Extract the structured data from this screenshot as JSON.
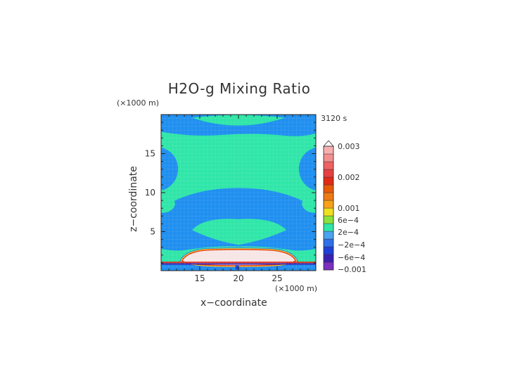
{
  "chart_data": {
    "type": "heatmap",
    "title": "H2O-g Mixing Ratio",
    "time_label": "3120 s",
    "xlabel": "x−coordinate",
    "ylabel": "z−coordinate",
    "x_unit": "(×1000 m)",
    "z_unit": "(×1000 m)",
    "xlim": [
      10,
      30
    ],
    "ylim": [
      0,
      20
    ],
    "x_ticks": [
      "15",
      "20",
      "25"
    ],
    "y_ticks": [
      "5",
      "10",
      "15"
    ],
    "colorbar": {
      "labels": [
        "0.003",
        "0.002",
        "0.001",
        "6e−4",
        "2e−4",
        "−2e−4",
        "−6e−4",
        "−0.001"
      ],
      "colors": [
        "#7b2fbe",
        "#3b1fb0",
        "#1f3fd8",
        "#2f6fe8",
        "#4aa3f0",
        "#2fe6a8",
        "#8ce23a",
        "#f0e020",
        "#f7a21a",
        "#ee7a14",
        "#e85a0a",
        "#e02a18",
        "#e64040",
        "#f06262",
        "#f29090",
        "#f7b0b0"
      ],
      "extend": "max"
    },
    "fields": {
      "background": "#1f8ff0",
      "plume_color": "#2fe6a8",
      "surface_blob_color": "#f7e6e6",
      "surface_blob_edge": "#e84010"
    }
  }
}
